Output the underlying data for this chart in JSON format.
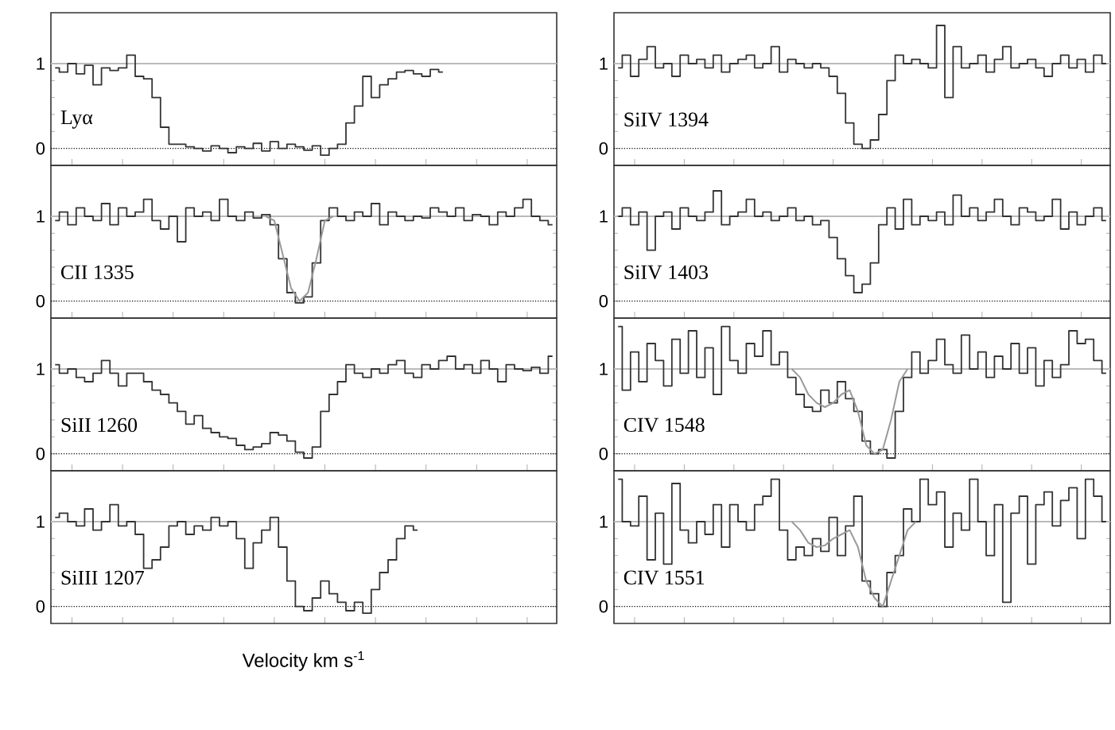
{
  "chart_data": [
    {
      "type": "step",
      "categories": [
        null,
        null,
        null,
        null,
        null,
        null,
        null,
        null,
        null,
        null,
        null,
        null,
        null,
        null,
        null,
        null,
        null,
        null,
        null,
        null,
        null,
        null,
        null,
        null,
        null,
        null,
        null,
        null,
        null,
        null,
        null,
        null,
        null,
        null,
        null,
        null,
        null,
        null,
        null,
        null,
        null,
        null,
        null,
        null,
        null,
        null,
        null
      ],
      "ylim": [
        -0.2,
        1.6
      ],
      "yticks": [
        0,
        1
      ],
      "tick_labels": "y",
      "annotations": [
        "Lyα"
      ],
      "ref_lines": [
        {
          "axis": "y",
          "value": 1,
          "color": "#bbbbbb",
          "line_style": "solid"
        },
        {
          "axis": "y",
          "value": 0,
          "color": "#000000",
          "line_style": "dotted"
        }
      ],
      "series": [
        {
          "color": "#333333",
          "values": [
            0.95,
            0.9,
            1.0,
            0.88,
            0.98,
            0.75,
            0.95,
            0.92,
            0.95,
            1.1,
            0.85,
            0.82,
            0.6,
            0.25,
            0.05,
            0.05,
            0.02,
            0.0,
            -0.03,
            0.03,
            0.0,
            -0.05,
            0.02,
            0.0,
            0.06,
            -0.03,
            0.08,
            0.0,
            0.05,
            0.02,
            -0.02,
            0.03,
            -0.08,
            0.0,
            0.05,
            0.3,
            0.5,
            0.85,
            0.6,
            0.75,
            0.82,
            0.9,
            0.92,
            0.88,
            0.85,
            0.93,
            0.9
          ]
        }
      ]
    },
    {
      "type": "step",
      "categories": [
        null,
        null,
        null,
        null,
        null,
        null,
        null,
        null,
        null,
        null,
        null,
        null,
        null,
        null,
        null,
        null,
        null,
        null,
        null,
        null,
        null,
        null,
        null,
        null,
        null,
        null,
        null,
        null,
        null,
        null,
        null,
        null,
        null,
        null,
        null,
        null,
        null,
        null,
        null,
        null,
        null,
        null,
        null,
        null,
        null,
        null,
        null,
        null,
        null,
        null,
        null,
        null,
        null,
        null,
        null,
        null,
        null,
        null,
        null,
        null
      ],
      "ylim": [
        -0.2,
        1.6
      ],
      "yticks": [
        0,
        1
      ],
      "tick_labels": "y",
      "annotations": [
        "CII  1335"
      ],
      "ref_lines": [
        {
          "axis": "y",
          "value": 1,
          "color": "#bbbbbb",
          "line_style": "solid"
        },
        {
          "axis": "y",
          "value": 0,
          "color": "#000000",
          "line_style": "dotted"
        }
      ],
      "series": [
        {
          "color": "#333333",
          "values": [
            0.95,
            1.05,
            0.9,
            1.1,
            1.0,
            0.95,
            1.15,
            0.9,
            1.1,
            1.0,
            1.05,
            1.2,
            0.95,
            0.85,
            1.0,
            0.7,
            1.1,
            1.0,
            1.05,
            0.95,
            1.2,
            1.0,
            0.95,
            1.05,
            0.98,
            1.02,
            0.9,
            0.5,
            0.1,
            -0.02,
            0.05,
            0.45,
            0.95,
            1.1,
            1.0,
            0.95,
            1.05,
            1.0,
            1.15,
            0.9,
            1.05,
            1.0,
            0.95,
            1.0,
            0.98,
            1.1,
            1.05,
            1.0,
            1.1,
            0.95,
            1.02,
            1.0,
            0.9,
            1.05,
            1.0,
            1.1,
            1.2,
            1.0,
            0.95,
            0.9
          ]
        },
        {
          "type": "line",
          "color": "#999999",
          "values": [
            null,
            null,
            null,
            null,
            null,
            null,
            null,
            null,
            null,
            null,
            null,
            null,
            null,
            null,
            null,
            null,
            null,
            null,
            null,
            null,
            null,
            null,
            null,
            null,
            null,
            1.0,
            0.95,
            0.55,
            0.15,
            0.0,
            0.1,
            0.5,
            0.95,
            1.0,
            null,
            null,
            null,
            null,
            null,
            null,
            null,
            null,
            null,
            null,
            null,
            null,
            null,
            null,
            null,
            null,
            null,
            null,
            null,
            null,
            null,
            null,
            null,
            null,
            null,
            null
          ]
        }
      ]
    },
    {
      "type": "step",
      "categories": [
        null,
        null,
        null,
        null,
        null,
        null,
        null,
        null,
        null,
        null,
        null,
        null,
        null,
        null,
        null,
        null,
        null,
        null,
        null,
        null,
        null,
        null,
        null,
        null,
        null,
        null,
        null,
        null,
        null,
        null,
        null,
        null,
        null,
        null,
        null,
        null,
        null,
        null,
        null,
        null,
        null,
        null,
        null,
        null,
        null,
        null,
        null,
        null,
        null,
        null,
        null,
        null,
        null,
        null,
        null,
        null,
        null,
        null,
        null,
        null
      ],
      "ylim": [
        -0.2,
        1.6
      ],
      "yticks": [
        0,
        1
      ],
      "tick_labels": "y",
      "annotations": [
        "SiII  1260"
      ],
      "ref_lines": [
        {
          "axis": "y",
          "value": 1,
          "color": "#bbbbbb",
          "line_style": "solid"
        },
        {
          "axis": "y",
          "value": 0,
          "color": "#000000",
          "line_style": "dotted"
        }
      ],
      "series": [
        {
          "color": "#333333",
          "values": [
            1.05,
            0.95,
            1.0,
            0.9,
            0.85,
            0.95,
            1.1,
            0.95,
            0.8,
            0.95,
            0.95,
            0.85,
            0.75,
            0.7,
            0.6,
            0.5,
            0.35,
            0.45,
            0.3,
            0.25,
            0.2,
            0.18,
            0.1,
            0.05,
            0.08,
            0.12,
            0.25,
            0.22,
            0.15,
            0.02,
            -0.05,
            0.08,
            0.5,
            0.7,
            0.85,
            1.05,
            0.95,
            0.9,
            1.0,
            0.95,
            1.05,
            1.1,
            0.95,
            0.9,
            1.05,
            1.0,
            1.1,
            1.15,
            1.0,
            1.05,
            0.95,
            1.1,
            1.0,
            0.85,
            1.05,
            1.0,
            0.98,
            1.02,
            0.95,
            1.15
          ]
        }
      ]
    },
    {
      "type": "step",
      "categories": [
        null,
        null,
        null,
        null,
        null,
        null,
        null,
        null,
        null,
        null,
        null,
        null,
        null,
        null,
        null,
        null,
        null,
        null,
        null,
        null,
        null,
        null,
        null,
        null,
        null,
        null,
        null,
        null,
        null,
        null,
        null,
        null,
        null,
        null,
        null,
        null,
        null,
        null,
        null,
        null,
        null,
        null,
        null,
        null
      ],
      "ylim": [
        -0.2,
        1.6
      ],
      "yticks": [
        0,
        1
      ],
      "tick_labels": "y",
      "annotations": [
        "SiIII  1207"
      ],
      "xlabel": "Velocity  km  s$^{-1}$",
      "ref_lines": [
        {
          "axis": "y",
          "value": 1,
          "color": "#bbbbbb",
          "line_style": "solid"
        },
        {
          "axis": "y",
          "value": 0,
          "color": "#000000",
          "line_style": "dotted"
        }
      ],
      "series": [
        {
          "color": "#333333",
          "values": [
            1.05,
            1.1,
            1.0,
            0.95,
            1.15,
            0.9,
            1.0,
            1.2,
            0.95,
            1.0,
            0.85,
            0.45,
            0.55,
            0.7,
            0.95,
            1.0,
            0.85,
            0.95,
            0.9,
            1.05,
            0.95,
            1.0,
            0.8,
            0.45,
            0.75,
            0.9,
            1.05,
            0.7,
            0.3,
            0.0,
            -0.05,
            0.1,
            0.3,
            0.15,
            0.05,
            -0.05,
            0.05,
            -0.08,
            0.2,
            0.4,
            0.55,
            0.8,
            0.95,
            0.9
          ]
        }
      ]
    },
    {
      "type": "step",
      "categories": [
        null,
        null,
        null,
        null,
        null,
        null,
        null,
        null,
        null,
        null,
        null,
        null,
        null,
        null,
        null,
        null,
        null,
        null,
        null,
        null,
        null,
        null,
        null,
        null,
        null,
        null,
        null,
        null,
        null,
        null,
        null,
        null,
        null,
        null,
        null,
        null,
        null,
        null,
        null,
        null,
        null,
        null,
        null,
        null,
        null,
        null,
        null,
        null,
        null,
        null,
        null,
        null,
        null,
        null,
        null,
        null,
        null,
        null,
        null,
        null
      ],
      "ylim": [
        -0.2,
        1.6
      ],
      "yticks": [
        0,
        1
      ],
      "tick_labels": "y",
      "annotations": [
        "SiIV  1394"
      ],
      "ref_lines": [
        {
          "axis": "y",
          "value": 1,
          "color": "#bbbbbb",
          "line_style": "solid"
        },
        {
          "axis": "y",
          "value": 0,
          "color": "#000000",
          "line_style": "dotted"
        }
      ],
      "series": [
        {
          "color": "#333333",
          "values": [
            0.95,
            1.1,
            0.85,
            1.05,
            1.2,
            0.95,
            1.0,
            0.85,
            1.1,
            1.0,
            1.05,
            0.95,
            1.1,
            0.9,
            1.0,
            1.05,
            1.1,
            0.95,
            1.0,
            1.2,
            0.9,
            1.05,
            1.0,
            0.95,
            1.0,
            0.95,
            0.85,
            0.65,
            0.3,
            0.05,
            0.0,
            0.1,
            0.4,
            0.8,
            1.1,
            1.0,
            1.05,
            1.0,
            0.95,
            1.45,
            0.6,
            1.2,
            0.95,
            1.0,
            1.1,
            0.9,
            1.05,
            1.2,
            0.95,
            1.0,
            1.05,
            0.95,
            0.85,
            1.0,
            1.1,
            0.95,
            1.05,
            0.9,
            1.1,
            1.0
          ]
        }
      ]
    },
    {
      "type": "step",
      "categories": [
        null,
        null,
        null,
        null,
        null,
        null,
        null,
        null,
        null,
        null,
        null,
        null,
        null,
        null,
        null,
        null,
        null,
        null,
        null,
        null,
        null,
        null,
        null,
        null,
        null,
        null,
        null,
        null,
        null,
        null,
        null,
        null,
        null,
        null,
        null,
        null,
        null,
        null,
        null,
        null,
        null,
        null,
        null,
        null,
        null,
        null,
        null,
        null,
        null,
        null,
        null,
        null,
        null,
        null,
        null,
        null,
        null,
        null,
        null,
        null
      ],
      "ylim": [
        -0.2,
        1.6
      ],
      "yticks": [
        0,
        1
      ],
      "tick_labels": "y",
      "annotations": [
        "SiIV  1403"
      ],
      "ref_lines": [
        {
          "axis": "y",
          "value": 1,
          "color": "#bbbbbb",
          "line_style": "solid"
        },
        {
          "axis": "y",
          "value": 0,
          "color": "#000000",
          "line_style": "dotted"
        }
      ],
      "series": [
        {
          "color": "#333333",
          "values": [
            1.0,
            1.1,
            0.9,
            1.05,
            0.6,
            1.0,
            1.05,
            0.85,
            1.1,
            1.0,
            0.95,
            1.05,
            1.3,
            0.9,
            1.0,
            1.05,
            1.2,
            1.0,
            1.05,
            0.95,
            1.0,
            1.1,
            0.95,
            1.0,
            0.9,
            0.95,
            0.75,
            0.5,
            0.3,
            0.1,
            0.2,
            0.45,
            0.9,
            1.1,
            0.85,
            1.2,
            0.9,
            1.0,
            0.95,
            1.05,
            0.9,
            1.25,
            1.0,
            1.1,
            0.95,
            1.05,
            1.2,
            1.0,
            0.9,
            1.1,
            1.05,
            0.95,
            1.0,
            1.2,
            0.85,
            1.05,
            0.9,
            1.0,
            1.1,
            0.95
          ]
        }
      ]
    },
    {
      "type": "step",
      "categories": [
        null,
        null,
        null,
        null,
        null,
        null,
        null,
        null,
        null,
        null,
        null,
        null,
        null,
        null,
        null,
        null,
        null,
        null,
        null,
        null,
        null,
        null,
        null,
        null,
        null,
        null,
        null,
        null,
        null,
        null,
        null,
        null,
        null,
        null,
        null,
        null,
        null,
        null,
        null,
        null,
        null,
        null,
        null,
        null,
        null,
        null,
        null,
        null,
        null,
        null,
        null,
        null,
        null,
        null,
        null,
        null,
        null,
        null,
        null,
        null
      ],
      "ylim": [
        -0.2,
        1.6
      ],
      "yticks": [
        0,
        1
      ],
      "tick_labels": "y",
      "annotations": [
        "CIV  1548"
      ],
      "ref_lines": [
        {
          "axis": "y",
          "value": 1,
          "color": "#bbbbbb",
          "line_style": "solid"
        },
        {
          "axis": "y",
          "value": 0,
          "color": "#000000",
          "line_style": "dotted"
        }
      ],
      "series": [
        {
          "color": "#333333",
          "values": [
            1.5,
            0.75,
            1.2,
            0.85,
            1.3,
            1.1,
            0.8,
            1.35,
            0.95,
            1.45,
            0.9,
            1.25,
            0.7,
            1.5,
            1.1,
            0.95,
            1.3,
            1.15,
            1.45,
            1.05,
            1.2,
            0.9,
            0.7,
            0.55,
            0.5,
            0.75,
            0.6,
            0.85,
            0.65,
            0.5,
            0.15,
            0.0,
            0.05,
            -0.05,
            0.5,
            0.9,
            1.2,
            0.95,
            1.1,
            1.35,
            1.05,
            0.95,
            1.4,
            1.0,
            1.2,
            0.9,
            1.15,
            1.0,
            1.3,
            0.95,
            1.25,
            0.8,
            1.1,
            0.9,
            1.05,
            1.45,
            1.3,
            1.35,
            1.1,
            0.95
          ]
        },
        {
          "type": "line",
          "color": "#999999",
          "values": [
            null,
            null,
            null,
            null,
            null,
            null,
            null,
            null,
            null,
            null,
            null,
            null,
            null,
            null,
            null,
            null,
            null,
            null,
            null,
            null,
            null,
            1.0,
            0.9,
            0.7,
            0.6,
            0.55,
            0.6,
            0.7,
            0.75,
            0.5,
            0.1,
            0.0,
            0.05,
            0.4,
            0.85,
            1.0,
            null,
            null,
            null,
            null,
            null,
            null,
            null,
            null,
            null,
            null,
            null,
            null,
            null,
            null,
            null,
            null,
            null,
            null,
            null,
            null,
            null,
            null,
            null,
            null
          ]
        }
      ]
    },
    {
      "type": "step",
      "categories": [
        null,
        null,
        null,
        null,
        null,
        null,
        null,
        null,
        null,
        null,
        null,
        null,
        null,
        null,
        null,
        null,
        null,
        null,
        null,
        null,
        null,
        null,
        null,
        null,
        null,
        null,
        null,
        null,
        null,
        null,
        null,
        null,
        null,
        null,
        null,
        null,
        null,
        null,
        null,
        null,
        null,
        null,
        null,
        null,
        null,
        null,
        null,
        null,
        null,
        null,
        null,
        null,
        null,
        null,
        null,
        null,
        null,
        null,
        null,
        null
      ],
      "ylim": [
        -0.2,
        1.6
      ],
      "yticks": [
        0,
        1
      ],
      "tick_labels": "y",
      "annotations": [
        "CIV  1551"
      ],
      "ref_lines": [
        {
          "axis": "y",
          "value": 1,
          "color": "#bbbbbb",
          "line_style": "solid"
        },
        {
          "axis": "y",
          "value": 0,
          "color": "#000000",
          "line_style": "dotted"
        }
      ],
      "series": [
        {
          "color": "#333333",
          "values": [
            1.5,
            1.0,
            0.95,
            1.3,
            0.55,
            1.1,
            0.5,
            1.45,
            0.9,
            0.75,
            1.0,
            0.85,
            1.2,
            0.7,
            1.2,
            1.0,
            0.9,
            1.2,
            1.3,
            1.5,
            0.9,
            0.55,
            0.7,
            0.6,
            0.8,
            0.65,
            1.05,
            0.6,
            0.95,
            1.3,
            0.3,
            0.15,
            0.0,
            0.4,
            0.6,
            1.15,
            1.0,
            1.5,
            1.2,
            1.35,
            0.7,
            1.1,
            0.9,
            1.5,
            1.0,
            0.6,
            1.2,
            0.05,
            1.1,
            1.3,
            0.5,
            1.2,
            1.35,
            0.95,
            1.25,
            1.4,
            0.8,
            1.5,
            1.3,
            1.0
          ]
        },
        {
          "type": "line",
          "color": "#999999",
          "values": [
            null,
            null,
            null,
            null,
            null,
            null,
            null,
            null,
            null,
            null,
            null,
            null,
            null,
            null,
            null,
            null,
            null,
            null,
            null,
            null,
            null,
            1.0,
            0.9,
            0.75,
            0.7,
            0.72,
            0.8,
            0.85,
            0.9,
            0.7,
            0.3,
            0.1,
            0.0,
            0.3,
            0.6,
            0.9,
            1.0,
            null,
            null,
            null,
            null,
            null,
            null,
            null,
            null,
            null,
            null,
            null,
            null,
            null,
            null,
            null,
            null,
            null,
            null,
            null,
            null,
            null,
            null,
            null
          ]
        }
      ]
    }
  ]
}
